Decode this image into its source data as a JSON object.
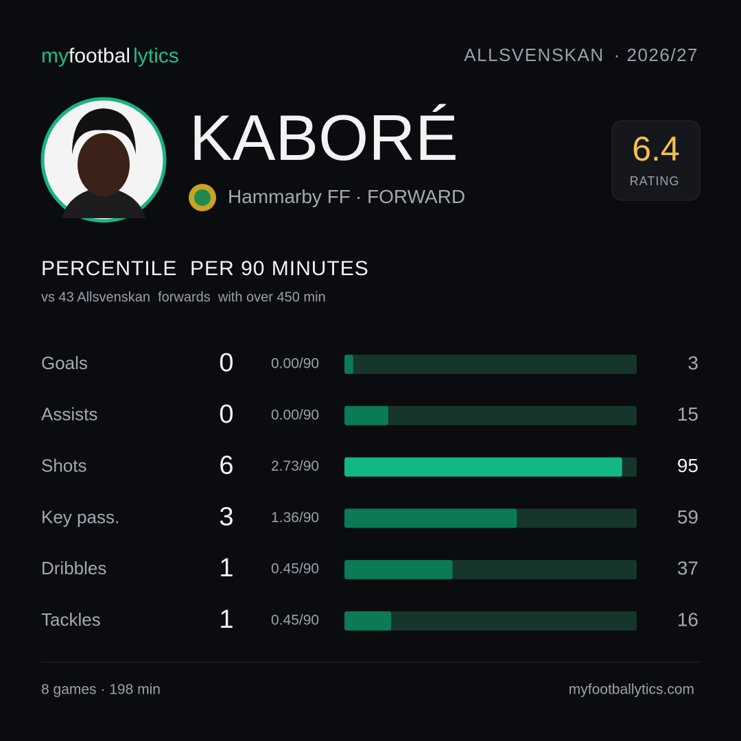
{
  "header": {
    "brand": [
      "my",
      "footbal",
      "lytics"
    ],
    "league": "ALLSVENSKAN",
    "season": "· 2026/27"
  },
  "player": {
    "name": "KABORÉ",
    "club": "Hammarby FF",
    "position": "· FORWARD",
    "rating": 6.4,
    "rating_label": "RATING"
  },
  "section": {
    "title": "PERCENTILE  PER 90 MINUTES",
    "subtitle": "vs 43 Allsvenskan  forwards  with over 450 min"
  },
  "chart_data": {
    "type": "bar",
    "xlim": [
      0,
      100
    ],
    "rows": [
      {
        "name": "Goals",
        "total": 0,
        "per90": "0.00/90",
        "percentile": 3,
        "color": "#0b7a55",
        "label_color": "#a3a9b2"
      },
      {
        "name": "Assists",
        "total": 0,
        "per90": "0.00/90",
        "percentile": 15,
        "color": "#0b7a55",
        "label_color": "#a3a9b2"
      },
      {
        "name": "Shots",
        "total": 6,
        "per90": "2.73/90",
        "percentile": 95,
        "color": "#12b883",
        "label_color": "#f2f3f5"
      },
      {
        "name": "Key pass.",
        "total": 3,
        "per90": "1.36/90",
        "percentile": 59,
        "color": "#0b7a55",
        "label_color": "#a3a9b2"
      },
      {
        "name": "Dribbles",
        "total": 1,
        "per90": "0.45/90",
        "percentile": 37,
        "color": "#0b7a55",
        "label_color": "#a3a9b2"
      },
      {
        "name": "Tackles",
        "total": 1,
        "per90": "0.45/90",
        "percentile": 16,
        "color": "#0b7a55",
        "label_color": "#a3a9b2"
      }
    ]
  },
  "footer": {
    "games": "8 games · 198 min",
    "site": "myfootballytics.com"
  }
}
